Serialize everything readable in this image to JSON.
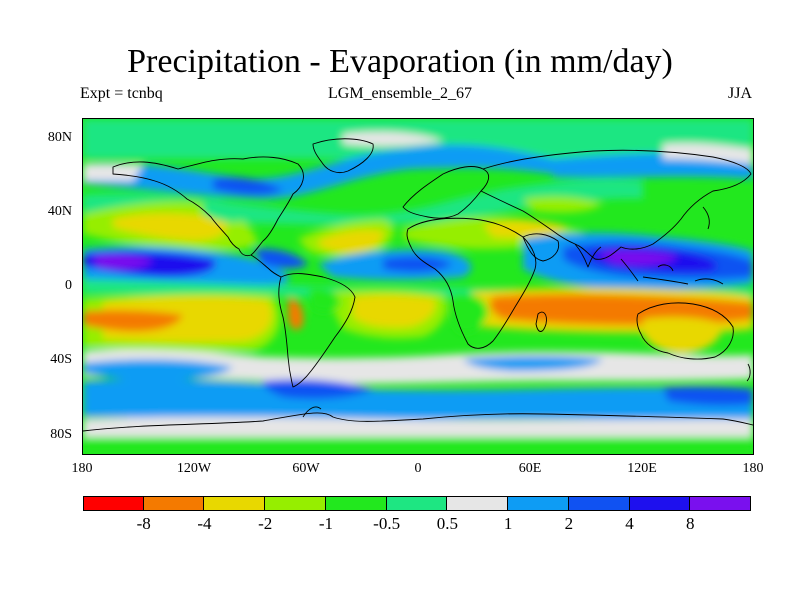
{
  "title": "Precipitation - Evaporation (in mm/day)",
  "subtitle_left": "Expt = tcnbq",
  "subtitle_center": "LGM_ensemble_2_67",
  "subtitle_right": "JJA",
  "map": {
    "projection": "cylindrical equidistant",
    "variable": "precipitation minus evaporation",
    "units": "mm/day",
    "season": "JJA"
  },
  "axes": {
    "lat_ticks": [
      "80N",
      "40N",
      "0",
      "40S",
      "80S"
    ],
    "lon_ticks": [
      "180",
      "120W",
      "60W",
      "0",
      "60E",
      "120E",
      "180"
    ]
  },
  "colorbar": {
    "colors": [
      "#ff0000",
      "#f47a00",
      "#e8d800",
      "#96ee00",
      "#22e81e",
      "#1ee682",
      "#e6e6e6",
      "#0e9cf4",
      "#1052f2",
      "#1e10ee",
      "#7a10ee"
    ],
    "labels": [
      "-8",
      "-4",
      "-2",
      "-1",
      "-0.5",
      "0.5",
      "1",
      "2",
      "4",
      "8"
    ]
  }
}
